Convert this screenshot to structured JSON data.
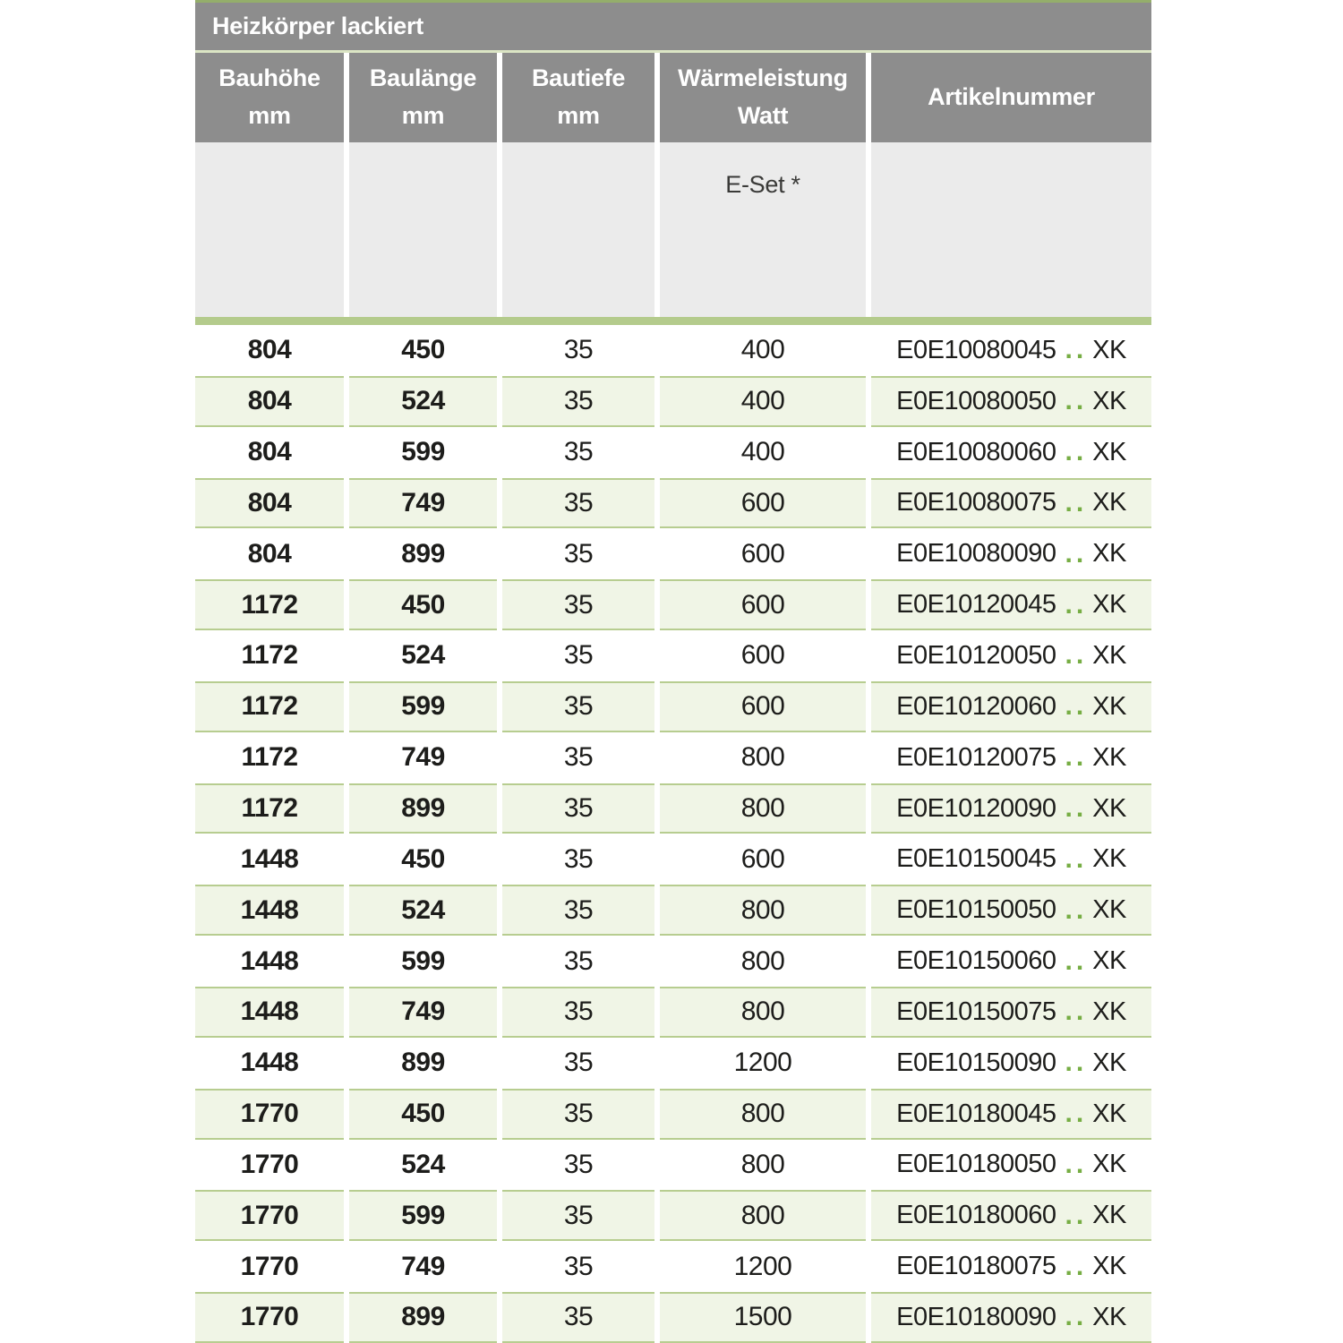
{
  "title": "Heizkörper lackiert",
  "columns": [
    {
      "line1": "Bauhöhe",
      "line2": "mm"
    },
    {
      "line1": "Baulänge",
      "line2": "mm"
    },
    {
      "line1": "Bautiefe",
      "line2": "mm"
    },
    {
      "line1": "Wärmeleistung",
      "line2": "Watt"
    },
    {
      "line1": "Artikelnummer",
      "line2": ""
    }
  ],
  "subheader": {
    "eset_label": "E-Set *"
  },
  "dots": "..",
  "rows": [
    {
      "bauhoehe": "804",
      "baulaenge": "450",
      "bautiefe": "35",
      "watt": "400",
      "article_code": "E0E10080045",
      "article_suffix": "XK"
    },
    {
      "bauhoehe": "804",
      "baulaenge": "524",
      "bautiefe": "35",
      "watt": "400",
      "article_code": "E0E10080050",
      "article_suffix": "XK"
    },
    {
      "bauhoehe": "804",
      "baulaenge": "599",
      "bautiefe": "35",
      "watt": "400",
      "article_code": "E0E10080060",
      "article_suffix": "XK"
    },
    {
      "bauhoehe": "804",
      "baulaenge": "749",
      "bautiefe": "35",
      "watt": "600",
      "article_code": "E0E10080075",
      "article_suffix": "XK"
    },
    {
      "bauhoehe": "804",
      "baulaenge": "899",
      "bautiefe": "35",
      "watt": "600",
      "article_code": "E0E10080090",
      "article_suffix": "XK"
    },
    {
      "bauhoehe": "1172",
      "baulaenge": "450",
      "bautiefe": "35",
      "watt": "600",
      "article_code": "E0E10120045",
      "article_suffix": "XK"
    },
    {
      "bauhoehe": "1172",
      "baulaenge": "524",
      "bautiefe": "35",
      "watt": "600",
      "article_code": "E0E10120050",
      "article_suffix": "XK"
    },
    {
      "bauhoehe": "1172",
      "baulaenge": "599",
      "bautiefe": "35",
      "watt": "600",
      "article_code": "E0E10120060",
      "article_suffix": "XK"
    },
    {
      "bauhoehe": "1172",
      "baulaenge": "749",
      "bautiefe": "35",
      "watt": "800",
      "article_code": "E0E10120075",
      "article_suffix": "XK"
    },
    {
      "bauhoehe": "1172",
      "baulaenge": "899",
      "bautiefe": "35",
      "watt": "800",
      "article_code": "E0E10120090",
      "article_suffix": "XK"
    },
    {
      "bauhoehe": "1448",
      "baulaenge": "450",
      "bautiefe": "35",
      "watt": "600",
      "article_code": "E0E10150045",
      "article_suffix": "XK"
    },
    {
      "bauhoehe": "1448",
      "baulaenge": "524",
      "bautiefe": "35",
      "watt": "800",
      "article_code": "E0E10150050",
      "article_suffix": "XK"
    },
    {
      "bauhoehe": "1448",
      "baulaenge": "599",
      "bautiefe": "35",
      "watt": "800",
      "article_code": "E0E10150060",
      "article_suffix": "XK"
    },
    {
      "bauhoehe": "1448",
      "baulaenge": "749",
      "bautiefe": "35",
      "watt": "800",
      "article_code": "E0E10150075",
      "article_suffix": "XK"
    },
    {
      "bauhoehe": "1448",
      "baulaenge": "899",
      "bautiefe": "35",
      "watt": "1200",
      "article_code": "E0E10150090",
      "article_suffix": "XK"
    },
    {
      "bauhoehe": "1770",
      "baulaenge": "450",
      "bautiefe": "35",
      "watt": "800",
      "article_code": "E0E10180045",
      "article_suffix": "XK"
    },
    {
      "bauhoehe": "1770",
      "baulaenge": "524",
      "bautiefe": "35",
      "watt": "800",
      "article_code": "E0E10180050",
      "article_suffix": "XK"
    },
    {
      "bauhoehe": "1770",
      "baulaenge": "599",
      "bautiefe": "35",
      "watt": "800",
      "article_code": "E0E10180060",
      "article_suffix": "XK"
    },
    {
      "bauhoehe": "1770",
      "baulaenge": "749",
      "bautiefe": "35",
      "watt": "1200",
      "article_code": "E0E10180075",
      "article_suffix": "XK"
    },
    {
      "bauhoehe": "1770",
      "baulaenge": "899",
      "bautiefe": "35",
      "watt": "1500",
      "article_code": "E0E10180090",
      "article_suffix": "XK"
    }
  ],
  "colors": {
    "header_gray": "#8d8d8d",
    "top_accent_green": "#94ae6b",
    "title_separator_green": "#dbe5c4",
    "subheader_gray": "#ebebeb",
    "divider_green": "#b4cb8c",
    "row_alt_green": "#f0f5e6",
    "row_alt_border_green": "#b7cd90",
    "dots_green": "#76ad43",
    "text_dark": "#1d1d1b",
    "header_text": "#ffffff"
  }
}
